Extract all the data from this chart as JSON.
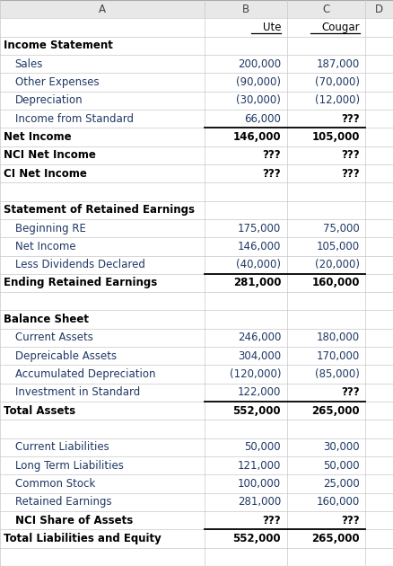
{
  "bg_color": "#ffffff",
  "header_bg": "#e8e8e8",
  "grid_color": "#c8c8c8",
  "text_color_normal": "#1f3864",
  "bold_text_color": "#000000",
  "font_size": 8.5,
  "col_bounds": [
    0.0,
    0.52,
    0.73,
    0.93,
    1.0
  ],
  "col_letters": [
    "A",
    "B",
    "C",
    "D"
  ],
  "ute_label": "Ute",
  "cougar_label": "Cougar",
  "rows": [
    {
      "label": "Income Statement",
      "b": "",
      "c": "",
      "bold": true,
      "indent": false,
      "section_header": true,
      "underline_after": false,
      "b_bold": false,
      "c_bold": false
    },
    {
      "label": "Sales",
      "b": "200,000",
      "c": "187,000",
      "bold": false,
      "indent": true,
      "section_header": false,
      "underline_after": false,
      "b_bold": false,
      "c_bold": false
    },
    {
      "label": "Other Expenses",
      "b": "(90,000)",
      "c": "(70,000)",
      "bold": false,
      "indent": true,
      "section_header": false,
      "underline_after": false,
      "b_bold": false,
      "c_bold": false
    },
    {
      "label": "Depreciation",
      "b": "(30,000)",
      "c": "(12,000)",
      "bold": false,
      "indent": true,
      "section_header": false,
      "underline_after": false,
      "b_bold": false,
      "c_bold": false
    },
    {
      "label": "Income from Standard",
      "b": "66,000",
      "c": "???",
      "bold": false,
      "indent": true,
      "section_header": false,
      "underline_after": true,
      "b_bold": false,
      "c_bold": true
    },
    {
      "label": "Net Income",
      "b": "146,000",
      "c": "105,000",
      "bold": true,
      "indent": false,
      "section_header": false,
      "underline_after": false,
      "b_bold": false,
      "c_bold": false
    },
    {
      "label": "NCI Net Income",
      "b": "???",
      "c": "???",
      "bold": true,
      "indent": false,
      "section_header": false,
      "underline_after": false,
      "b_bold": true,
      "c_bold": true
    },
    {
      "label": "CI Net Income",
      "b": "???",
      "c": "???",
      "bold": true,
      "indent": false,
      "section_header": false,
      "underline_after": false,
      "b_bold": true,
      "c_bold": true
    },
    {
      "label": "",
      "b": "",
      "c": "",
      "bold": false,
      "indent": false,
      "section_header": false,
      "underline_after": false,
      "b_bold": false,
      "c_bold": false
    },
    {
      "label": "Statement of Retained Earnings",
      "b": "",
      "c": "",
      "bold": true,
      "indent": false,
      "section_header": true,
      "underline_after": false,
      "b_bold": false,
      "c_bold": false
    },
    {
      "label": "Beginning RE",
      "b": "175,000",
      "c": "75,000",
      "bold": false,
      "indent": true,
      "section_header": false,
      "underline_after": false,
      "b_bold": false,
      "c_bold": false
    },
    {
      "label": "Net Income",
      "b": "146,000",
      "c": "105,000",
      "bold": false,
      "indent": true,
      "section_header": false,
      "underline_after": false,
      "b_bold": false,
      "c_bold": false
    },
    {
      "label": "Less Dividends Declared",
      "b": "(40,000)",
      "c": "(20,000)",
      "bold": false,
      "indent": true,
      "section_header": false,
      "underline_after": true,
      "b_bold": false,
      "c_bold": false
    },
    {
      "label": "Ending Retained Earnings",
      "b": "281,000",
      "c": "160,000",
      "bold": true,
      "indent": false,
      "section_header": false,
      "underline_after": false,
      "b_bold": false,
      "c_bold": false
    },
    {
      "label": "",
      "b": "",
      "c": "",
      "bold": false,
      "indent": false,
      "section_header": false,
      "underline_after": false,
      "b_bold": false,
      "c_bold": false
    },
    {
      "label": "Balance Sheet",
      "b": "",
      "c": "",
      "bold": true,
      "indent": false,
      "section_header": true,
      "underline_after": false,
      "b_bold": false,
      "c_bold": false
    },
    {
      "label": "Current Assets",
      "b": "246,000",
      "c": "180,000",
      "bold": false,
      "indent": true,
      "section_header": false,
      "underline_after": false,
      "b_bold": false,
      "c_bold": false
    },
    {
      "label": "Depreicable Assets",
      "b": "304,000",
      "c": "170,000",
      "bold": false,
      "indent": true,
      "section_header": false,
      "underline_after": false,
      "b_bold": false,
      "c_bold": false
    },
    {
      "label": "Accumulated Depreciation",
      "b": "(120,000)",
      "c": "(85,000)",
      "bold": false,
      "indent": true,
      "section_header": false,
      "underline_after": false,
      "b_bold": false,
      "c_bold": false
    },
    {
      "label": "Investment in Standard",
      "b": "122,000",
      "c": "???",
      "bold": false,
      "indent": true,
      "section_header": false,
      "underline_after": true,
      "b_bold": false,
      "c_bold": true
    },
    {
      "label": "Total Assets",
      "b": "552,000",
      "c": "265,000",
      "bold": true,
      "indent": false,
      "section_header": false,
      "underline_after": false,
      "b_bold": false,
      "c_bold": false
    },
    {
      "label": "",
      "b": "",
      "c": "",
      "bold": false,
      "indent": false,
      "section_header": false,
      "underline_after": false,
      "b_bold": false,
      "c_bold": false
    },
    {
      "label": "Current Liabilities",
      "b": "50,000",
      "c": "30,000",
      "bold": false,
      "indent": true,
      "section_header": false,
      "underline_after": false,
      "b_bold": false,
      "c_bold": false
    },
    {
      "label": "Long Term Liabilities",
      "b": "121,000",
      "c": "50,000",
      "bold": false,
      "indent": true,
      "section_header": false,
      "underline_after": false,
      "b_bold": false,
      "c_bold": false
    },
    {
      "label": "Common Stock",
      "b": "100,000",
      "c": "25,000",
      "bold": false,
      "indent": true,
      "section_header": false,
      "underline_after": false,
      "b_bold": false,
      "c_bold": false
    },
    {
      "label": "Retained Earnings",
      "b": "281,000",
      "c": "160,000",
      "bold": false,
      "indent": true,
      "section_header": false,
      "underline_after": false,
      "b_bold": false,
      "c_bold": false
    },
    {
      "label": "NCI Share of Assets",
      "b": "???",
      "c": "???",
      "bold": true,
      "indent": true,
      "section_header": false,
      "underline_after": true,
      "b_bold": true,
      "c_bold": true
    },
    {
      "label": "Total Liabilities and Equity",
      "b": "552,000",
      "c": "265,000",
      "bold": true,
      "indent": false,
      "section_header": false,
      "underline_after": false,
      "b_bold": false,
      "c_bold": false
    },
    {
      "label": "",
      "b": "",
      "c": "",
      "bold": false,
      "indent": false,
      "section_header": false,
      "underline_after": false,
      "b_bold": false,
      "c_bold": false
    }
  ]
}
